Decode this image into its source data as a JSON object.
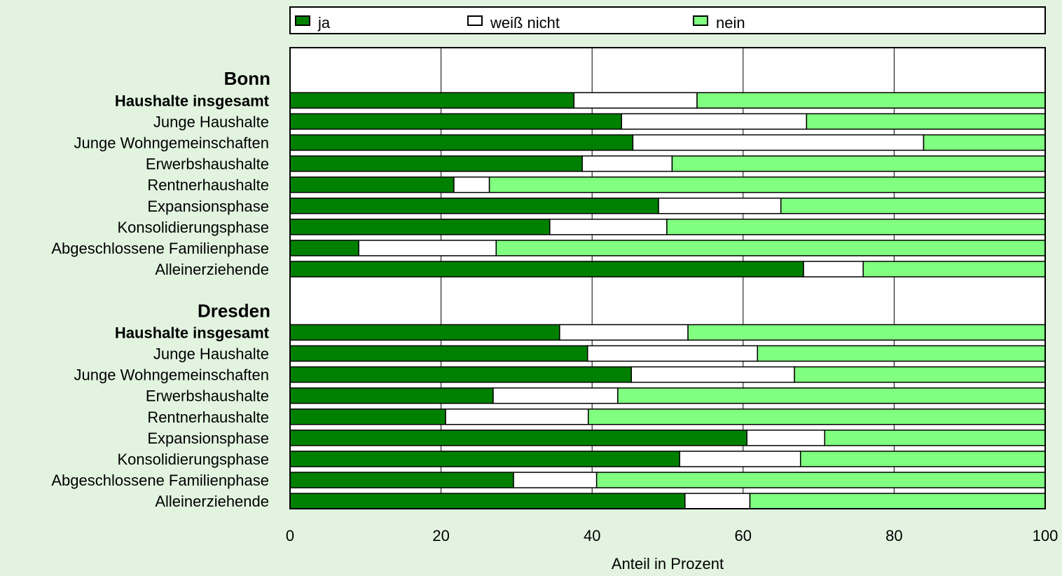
{
  "chart_data": {
    "type": "bar",
    "orientation": "horizontal",
    "stacked": true,
    "xlabel": "Anteil in Prozent",
    "xlim": [
      0,
      100
    ],
    "xticks": [
      "0",
      "20",
      "40",
      "60",
      "80",
      "100"
    ],
    "grid": "vertical",
    "legend_position": "top",
    "legend": [
      {
        "name": "ja",
        "color": "#008000"
      },
      {
        "name": "weiß nicht",
        "color": "#ffffff"
      },
      {
        "name": "nein",
        "color": "#80ff80"
      }
    ],
    "groups": [
      {
        "name": "Bonn",
        "categories": [
          "Haushalte insgesamt",
          "Junge Haushalte",
          "Junge Wohngemeinschaften",
          "Erwerbshaushalte",
          "Rentnerhaushalte",
          "Expansionsphase",
          "Konsolidierungsphase",
          "Abgeschlossene Familienphase",
          "Alleinerziehende"
        ],
        "bold_categories": [
          "Haushalte insgesamt"
        ],
        "series": [
          {
            "name": "ja",
            "values": [
              37.6,
              43.9,
              45.4,
              38.7,
              21.7,
              48.8,
              34.4,
              9.1,
              68.0
            ]
          },
          {
            "name": "weiß nicht",
            "values": [
              16.3,
              24.5,
              38.5,
              11.9,
              4.7,
              16.2,
              15.5,
              18.2,
              7.9
            ]
          },
          {
            "name": "nein",
            "values": [
              46.1,
              31.6,
              16.1,
              49.4,
              73.6,
              35.0,
              50.1,
              72.7,
              24.1
            ]
          }
        ]
      },
      {
        "name": "Dresden",
        "categories": [
          "Haushalte insgesamt",
          "Junge Haushalte",
          "Junge Wohngemeinschaften",
          "Erwerbshaushalte",
          "Rentnerhaushalte",
          "Expansionsphase",
          "Konsolidierungsphase",
          "Abgeschlossene Familienphase",
          "Alleinerziehende"
        ],
        "bold_categories": [
          "Haushalte insgesamt"
        ],
        "series": [
          {
            "name": "ja",
            "values": [
              35.7,
              39.4,
              45.2,
              26.9,
              20.6,
              60.5,
              51.6,
              29.6,
              52.3
            ]
          },
          {
            "name": "weiß nicht",
            "values": [
              17.0,
              22.5,
              21.6,
              16.5,
              18.9,
              10.3,
              16.0,
              11.0,
              8.6
            ]
          },
          {
            "name": "nein",
            "values": [
              47.3,
              38.1,
              33.2,
              56.6,
              60.5,
              29.2,
              32.4,
              59.4,
              39.1
            ]
          }
        ]
      }
    ]
  }
}
